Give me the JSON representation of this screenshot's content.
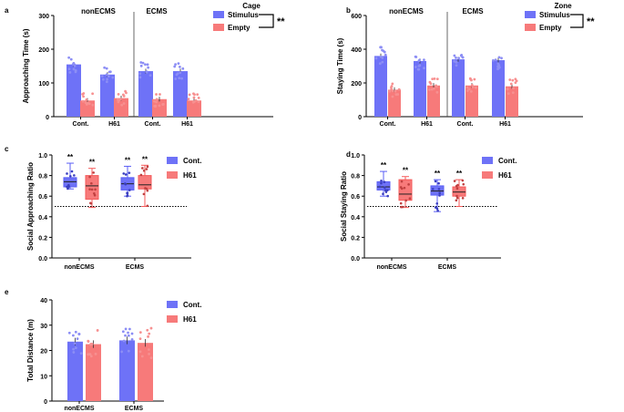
{
  "colors": {
    "blue": "#5a5ef5",
    "red": "#f55a5a",
    "blue_fill": "#6e72f7",
    "red_fill": "#f77a7a",
    "dot_blue": "#8c8ef5",
    "dot_red": "#f79090",
    "axis": "#000000"
  },
  "chart_data": [
    {
      "id": "a",
      "panel_label": "a",
      "type": "bar",
      "ylabel": "Approaching Time (s)",
      "ylim": [
        0,
        300
      ],
      "yticks": [
        0,
        100,
        200,
        300
      ],
      "groups": [
        "nonECMS",
        "ECMS"
      ],
      "categories": [
        "Cont.",
        "H61",
        "Cont.",
        "H61"
      ],
      "series": [
        {
          "name": "Stimulus",
          "values": [
            155,
            125,
            135,
            135
          ]
        },
        {
          "name": "Empty",
          "values": [
            48,
            55,
            52,
            48
          ]
        }
      ],
      "legend_title": "Cage",
      "legend": [
        "Stimulus",
        "Empty"
      ],
      "significance": "**"
    },
    {
      "id": "b",
      "panel_label": "b",
      "type": "bar",
      "ylabel": "Staying Time (s)",
      "ylim": [
        0,
        600
      ],
      "yticks": [
        0,
        200,
        400,
        600
      ],
      "groups": [
        "nonECMS",
        "ECMS"
      ],
      "categories": [
        "Cont.",
        "H61",
        "Cont.",
        "H61"
      ],
      "series": [
        {
          "name": "Stimulus",
          "values": [
            360,
            330,
            340,
            335
          ]
        },
        {
          "name": "Empty",
          "values": [
            160,
            185,
            185,
            180
          ]
        }
      ],
      "legend_title": "Zone",
      "legend": [
        "Stimulus",
        "Empty"
      ],
      "significance": "**"
    },
    {
      "id": "c",
      "panel_label": "c",
      "type": "box",
      "ylabel": "Social Approaching Ratio",
      "ylim": [
        0.0,
        1.0
      ],
      "yticks": [
        0.0,
        0.2,
        0.4,
        0.6,
        0.8,
        1.0
      ],
      "categories": [
        "nonECMS",
        "ECMS"
      ],
      "reference_line": 0.5,
      "series": [
        {
          "name": "Cont.",
          "boxes": [
            {
              "min": 0.67,
              "q1": 0.69,
              "median": 0.74,
              "q3": 0.78,
              "max": 0.92
            },
            {
              "min": 0.6,
              "q1": 0.66,
              "median": 0.72,
              "q3": 0.78,
              "max": 0.89
            }
          ]
        },
        {
          "name": "H61",
          "boxes": [
            {
              "min": 0.49,
              "q1": 0.57,
              "median": 0.7,
              "q3": 0.8,
              "max": 0.87
            },
            {
              "min": 0.5,
              "q1": 0.67,
              "median": 0.71,
              "q3": 0.8,
              "max": 0.9
            }
          ]
        }
      ],
      "annotations": [
        "**",
        "**",
        "**",
        "**"
      ],
      "legend": [
        "Cont.",
        "H61"
      ]
    },
    {
      "id": "d",
      "panel_label": "d",
      "type": "box",
      "ylabel": "Social Staying Ratio",
      "ylim": [
        0.0,
        1.0
      ],
      "yticks": [
        0.0,
        0.2,
        0.4,
        0.6,
        0.8,
        1.0
      ],
      "categories": [
        "nonECMS",
        "ECMS"
      ],
      "reference_line": 0.5,
      "series": [
        {
          "name": "Cont.",
          "boxes": [
            {
              "min": 0.6,
              "q1": 0.66,
              "median": 0.69,
              "q3": 0.74,
              "max": 0.84
            },
            {
              "min": 0.45,
              "q1": 0.61,
              "median": 0.65,
              "q3": 0.7,
              "max": 0.76
            }
          ]
        },
        {
          "name": "H61",
          "boxes": [
            {
              "min": 0.49,
              "q1": 0.56,
              "median": 0.62,
              "q3": 0.76,
              "max": 0.79
            },
            {
              "min": 0.5,
              "q1": 0.6,
              "median": 0.64,
              "q3": 0.69,
              "max": 0.76
            }
          ]
        }
      ],
      "annotations": [
        "**",
        "**",
        "**",
        "**"
      ],
      "legend": [
        "Cont.",
        "H61"
      ]
    },
    {
      "id": "e",
      "panel_label": "e",
      "type": "bar",
      "ylabel": "Total Distance (m)",
      "ylim": [
        0,
        40
      ],
      "yticks": [
        0,
        10,
        20,
        30,
        40
      ],
      "categories": [
        "nonECMS",
        "ECMS"
      ],
      "series": [
        {
          "name": "Cont.",
          "values": [
            23.5,
            24.0
          ]
        },
        {
          "name": "H61",
          "values": [
            22.5,
            23.0
          ]
        }
      ],
      "legend": [
        "Cont.",
        "H61"
      ]
    }
  ]
}
